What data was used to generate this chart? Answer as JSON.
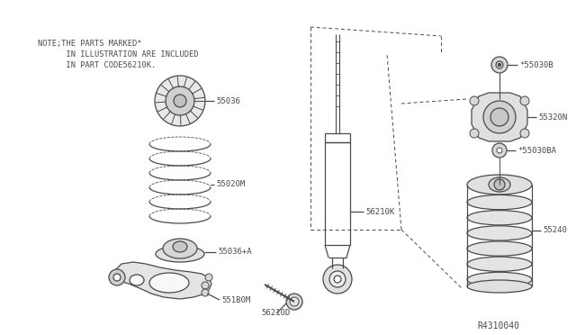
{
  "bg_color": "#ffffff",
  "line_color": "#4a4a4a",
  "note_text": [
    "NOTE;THE PARTS MARKED*",
    "   IN ILLUSTRATION ARE INCLUDED",
    "   IN PART CODE56210K."
  ],
  "ref_code": "R4310040",
  "fig_width": 6.4,
  "fig_height": 3.72
}
